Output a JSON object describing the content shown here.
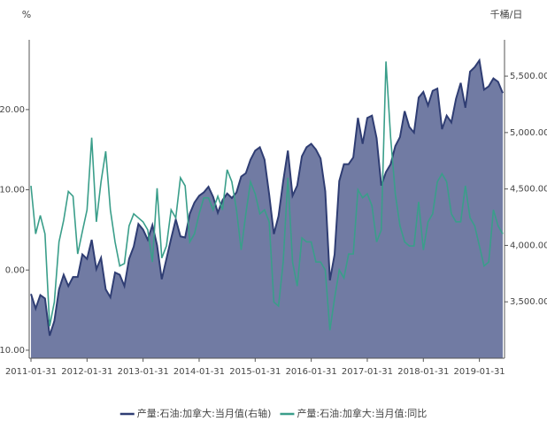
{
  "chart_data": {
    "type": "area_line",
    "y_label": "%",
    "y2_label": "千桶/日",
    "categories": [
      "2011-01-31",
      null,
      null,
      null,
      null,
      null,
      null,
      null,
      null,
      null,
      null,
      null,
      "2012-01-31",
      null,
      null,
      null,
      null,
      null,
      null,
      null,
      null,
      null,
      null,
      null,
      "2013-01-31",
      null,
      null,
      null,
      null,
      null,
      null,
      null,
      null,
      null,
      null,
      null,
      "2014-01-31",
      null,
      null,
      null,
      null,
      null,
      null,
      null,
      null,
      null,
      null,
      null,
      "2015-01-31",
      null,
      null,
      null,
      null,
      null,
      null,
      null,
      null,
      null,
      null,
      null,
      "2016-01-31",
      null,
      null,
      null,
      null,
      null,
      null,
      null,
      null,
      null,
      null,
      null,
      "2017-01-31",
      null,
      null,
      null,
      null,
      null,
      null,
      null,
      null,
      null,
      null,
      null,
      "2018-01-31",
      null,
      null,
      null,
      null,
      null,
      null,
      null,
      null,
      null,
      null,
      null,
      "2019-01-31",
      null,
      null,
      null,
      null,
      null
    ],
    "series": [
      {
        "name": "产量:石油:加拿大:当月值(右轴)",
        "color": "#2f3d73",
        "fill": "#717ba3",
        "axis": "y2",
        "kind": "area",
        "values": [
          3570,
          3440,
          3560,
          3530,
          3200,
          3330,
          3610,
          3740,
          3640,
          3720,
          3720,
          3920,
          3880,
          4050,
          3790,
          3890,
          3610,
          3540,
          3760,
          3740,
          3640,
          3880,
          3990,
          4190,
          4140,
          4050,
          4180,
          4000,
          3700,
          3880,
          4060,
          4230,
          4080,
          4070,
          4280,
          4380,
          4440,
          4470,
          4520,
          4430,
          4290,
          4400,
          4460,
          4420,
          4470,
          4610,
          4640,
          4760,
          4840,
          4870,
          4760,
          4450,
          4100,
          4260,
          4570,
          4840,
          4440,
          4530,
          4790,
          4870,
          4900,
          4850,
          4770,
          4480,
          3690,
          3920,
          4570,
          4720,
          4720,
          4780,
          5130,
          4900,
          5130,
          5150,
          4950,
          4530,
          4650,
          4720,
          4880,
          4960,
          5190,
          5050,
          5000,
          5310,
          5360,
          5240,
          5370,
          5390,
          5030,
          5150,
          5090,
          5300,
          5440,
          5220,
          5540,
          5580,
          5640,
          5380,
          5410,
          5480,
          5450,
          5350
        ]
      },
      {
        "name": "产量:石油:加拿大:当月值:同比",
        "color": "#3a9e8a",
        "axis": "y",
        "kind": "line",
        "values": [
          10.5,
          4.5,
          6.8,
          4.5,
          -7,
          -4,
          3.5,
          6.2,
          9.8,
          9.2,
          2,
          4.8,
          7.5,
          16.5,
          6,
          11,
          14.8,
          7.5,
          3.5,
          0.5,
          0.8,
          5.5,
          7,
          6.5,
          6,
          5,
          1,
          10.2,
          1.5,
          3,
          7.5,
          6.5,
          11.5,
          10.5,
          3.5,
          4.5,
          7,
          9,
          9,
          7.5,
          9.2,
          7.5,
          12.5,
          11,
          7.5,
          2.5,
          7,
          11,
          9.5,
          7,
          7.5,
          6,
          -4,
          -4.5,
          1,
          11.5,
          1,
          -2,
          4,
          3.5,
          3.5,
          1,
          1,
          0,
          -7.5,
          -3.5,
          0,
          -1,
          2,
          2,
          10,
          9,
          9.5,
          8,
          3.5,
          5,
          26,
          16.5,
          9.5,
          5.5,
          3.5,
          3,
          3,
          8.5,
          2.5,
          6,
          7,
          11,
          12,
          11,
          7,
          6,
          6,
          10.5,
          6.5,
          5.5,
          3,
          0.5,
          1,
          7.5,
          5.5,
          4.5
        ]
      }
    ],
    "ylim": [
      -11,
      28.7
    ],
    "yticks": [
      {
        "value": -10,
        "label": "-10.00"
      },
      {
        "value": 0,
        "label": "0.00"
      },
      {
        "value": 10,
        "label": "10.00"
      },
      {
        "value": 20,
        "label": "20.00"
      }
    ],
    "y2lim": [
      3000,
      5822
    ],
    "y2ticks": [
      {
        "value": 3500,
        "label": "3,500.00"
      },
      {
        "value": 4000,
        "label": "4,000.00"
      },
      {
        "value": 4500,
        "label": "4,500.00"
      },
      {
        "value": 5000,
        "label": "5,000.00"
      },
      {
        "value": 5500,
        "label": "5,500.00"
      }
    ],
    "legend": "bottom"
  }
}
